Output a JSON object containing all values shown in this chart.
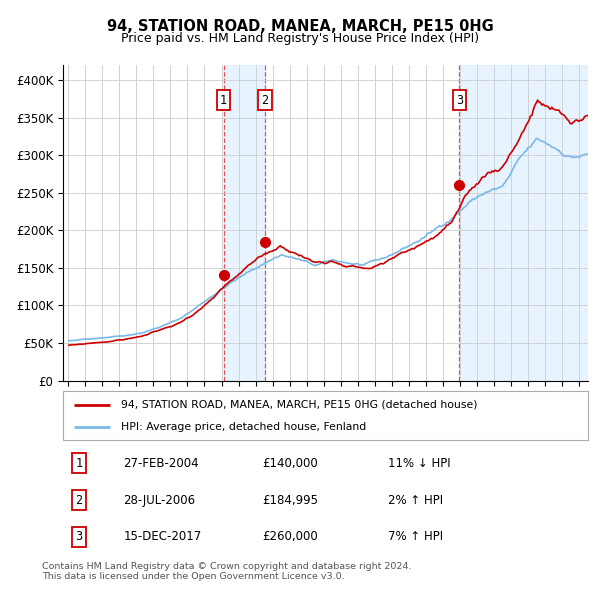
{
  "title": "94, STATION ROAD, MANEA, MARCH, PE15 0HG",
  "subtitle": "Price paid vs. HM Land Registry's House Price Index (HPI)",
  "ylabel_ticks": [
    "£0",
    "£50K",
    "£100K",
    "£150K",
    "£200K",
    "£250K",
    "£300K",
    "£350K",
    "£400K"
  ],
  "ytick_values": [
    0,
    50000,
    100000,
    150000,
    200000,
    250000,
    300000,
    350000,
    400000
  ],
  "ylim": [
    0,
    420000
  ],
  "sale_dates_decimal": [
    2004.12,
    2006.56,
    2017.96
  ],
  "sale_prices": [
    140000,
    184995,
    260000
  ],
  "sale_labels": [
    "1",
    "2",
    "3"
  ],
  "legend_line1": "94, STATION ROAD, MANEA, MARCH, PE15 0HG (detached house)",
  "legend_line2": "HPI: Average price, detached house, Fenland",
  "table_rows": [
    [
      "1",
      "27-FEB-2004",
      "£140,000",
      "11% ↓ HPI"
    ],
    [
      "2",
      "28-JUL-2006",
      "£184,995",
      "2% ↑ HPI"
    ],
    [
      "3",
      "15-DEC-2017",
      "£260,000",
      "7% ↑ HPI"
    ]
  ],
  "footer": "Contains HM Land Registry data © Crown copyright and database right 2024.\nThis data is licensed under the Open Government Licence v3.0.",
  "hpi_color": "#7ab8e8",
  "sale_color": "#cc0000",
  "vline_color": "#dd4444",
  "shade_color": "#ddeeff",
  "grid_color": "#cccccc",
  "background_color": "#ffffff",
  "xlim_start": 1995.0,
  "xlim_end": 2025.5
}
